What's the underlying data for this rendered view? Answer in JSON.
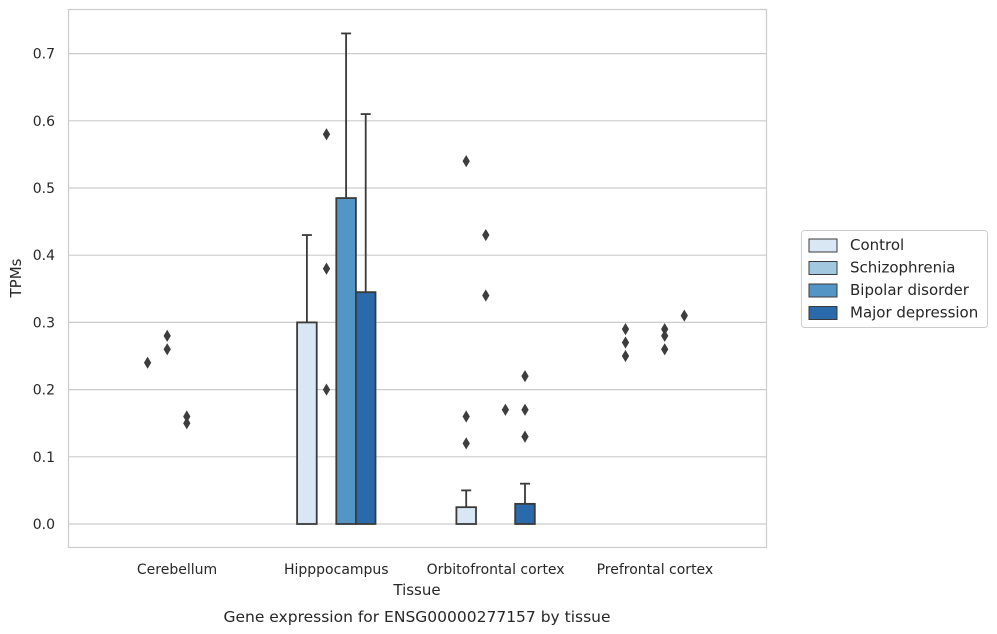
{
  "caption": "Gene expression for ENSG00000277157 by tissue",
  "chart_data": {
    "type": "bar",
    "xlabel": "Tissue",
    "ylabel": "TPMs",
    "ylim": [
      -0.035,
      0.765
    ],
    "yticks": [
      "0.0",
      "0.1",
      "0.2",
      "0.3",
      "0.4",
      "0.5",
      "0.6",
      "0.7"
    ],
    "ytick_values": [
      0.0,
      0.1,
      0.2,
      0.3,
      0.4,
      0.5,
      0.6,
      0.7
    ],
    "grid": true,
    "legend_position": "right",
    "categories": [
      "Cerebellum",
      "Hipppocampus",
      "Orbitofrontal cortex",
      "Prefrontal cortex"
    ],
    "series": [
      {
        "name": "Control",
        "color": "#d9e7f5",
        "values": [
          0.0,
          0.3,
          0.025,
          0.0
        ],
        "err_upper": [
          null,
          0.43,
          0.05,
          null
        ],
        "outliers": [
          [
            0.24
          ],
          [],
          [
            0.54,
            0.16,
            0.12
          ],
          [
            0.29,
            0.27,
            0.25
          ]
        ]
      },
      {
        "name": "Schizophrenia",
        "color": "#a2c8e0",
        "values": [
          0.0,
          0.0,
          0.0,
          0.0
        ],
        "err_upper": [
          null,
          null,
          null,
          null
        ],
        "outliers": [
          [
            0.28,
            0.26
          ],
          [
            0.58,
            0.38,
            0.2
          ],
          [
            0.43,
            0.34
          ],
          []
        ]
      },
      {
        "name": "Bipolar disorder",
        "color": "#5396c5",
        "values": [
          0.0,
          0.485,
          0.0,
          0.0
        ],
        "err_upper": [
          null,
          0.73,
          null,
          null
        ],
        "outliers": [
          [
            0.16,
            0.15
          ],
          [],
          [
            0.17
          ],
          [
            0.29,
            0.28,
            0.26
          ]
        ]
      },
      {
        "name": "Major depression",
        "color": "#2a69aa",
        "values": [
          0.0,
          0.345,
          0.03,
          0.0
        ],
        "err_upper": [
          null,
          0.61,
          0.06,
          null
        ],
        "outliers": [
          [],
          [],
          [
            0.22,
            0.17,
            0.13
          ],
          [
            0.31
          ]
        ]
      }
    ]
  }
}
